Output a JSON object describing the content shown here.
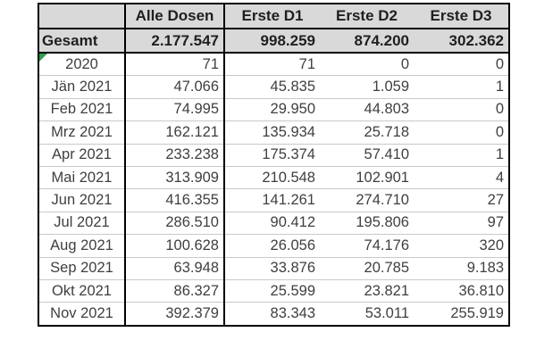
{
  "table": {
    "columns": [
      "",
      "Alle Dosen",
      "Erste D1",
      "Erste D2",
      "Erste D3"
    ],
    "total_row": {
      "label": "Gesamt",
      "values": [
        "2.177.547",
        "998.259",
        "874.200",
        "302.362"
      ]
    },
    "rows": [
      {
        "label": "2020",
        "values": [
          "71",
          "71",
          "0",
          "0"
        ],
        "error_marker": true
      },
      {
        "label": "Jän 2021",
        "values": [
          "47.066",
          "45.835",
          "1.059",
          "1"
        ]
      },
      {
        "label": "Feb 2021",
        "values": [
          "74.995",
          "29.950",
          "44.803",
          "0"
        ]
      },
      {
        "label": "Mrz 2021",
        "values": [
          "162.121",
          "135.934",
          "25.718",
          "0"
        ]
      },
      {
        "label": "Apr 2021",
        "values": [
          "233.238",
          "175.374",
          "57.410",
          "1"
        ]
      },
      {
        "label": "Mai 2021",
        "values": [
          "313.909",
          "210.548",
          "102.901",
          "4"
        ]
      },
      {
        "label": "Jun 2021",
        "values": [
          "416.355",
          "141.261",
          "274.710",
          "27"
        ]
      },
      {
        "label": "Jul 2021",
        "values": [
          "286.510",
          "90.412",
          "195.806",
          "97"
        ]
      },
      {
        "label": "Aug 2021",
        "values": [
          "100.628",
          "26.056",
          "74.176",
          "320"
        ]
      },
      {
        "label": "Sep 2021",
        "values": [
          "63.948",
          "33.876",
          "20.785",
          "9.183"
        ]
      },
      {
        "label": "Okt 2021",
        "values": [
          "86.327",
          "25.599",
          "23.821",
          "36.810"
        ]
      },
      {
        "label": "Nov 2021",
        "values": [
          "392.379",
          "83.343",
          "53.011",
          "255.919"
        ]
      }
    ],
    "colors": {
      "header_bg": "#d9d9d9",
      "total_bg": "#d9d9d9",
      "row_bg": "#ffffff",
      "thick_border": "#000000",
      "thin_line": "#c9c9c9",
      "text": "#3f3f3f",
      "bold_text": "#1f1f1f",
      "error_marker_green": "#2f9e4d"
    }
  }
}
